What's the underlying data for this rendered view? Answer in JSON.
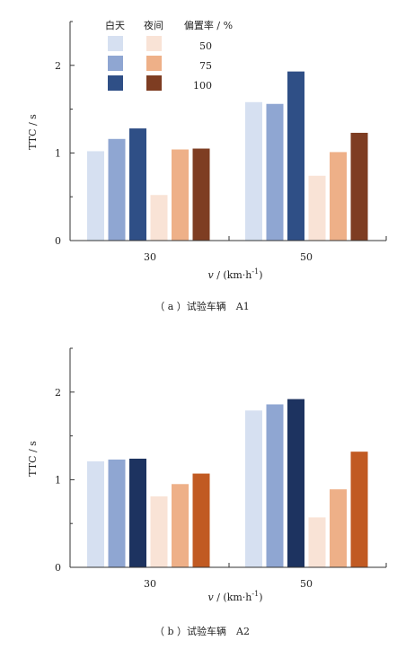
{
  "legend": {
    "day_header": "白天",
    "night_header": "夜间",
    "rate_header": "偏置率 / %",
    "rates": [
      "50",
      "75",
      "100"
    ]
  },
  "chart_data": [
    {
      "type": "bar",
      "caption": "（ a ）试验车辆　A1",
      "xlabel": "v / (km·h⁻¹)",
      "ylabel": "TTC / s",
      "ylim": [
        0,
        2.5
      ],
      "yticks": [
        0,
        1,
        2
      ],
      "categories": [
        "30",
        "50"
      ],
      "legend_position": "top-left",
      "series": [
        {
          "group": "白天",
          "rate": "50",
          "color": "#d6e0f1",
          "values": [
            1.02,
            1.58
          ]
        },
        {
          "group": "白天",
          "rate": "75",
          "color": "#8fa6d2",
          "values": [
            1.16,
            1.56
          ]
        },
        {
          "group": "白天",
          "rate": "100",
          "color": "#2f4f86",
          "values": [
            1.28,
            1.93
          ]
        },
        {
          "group": "夜间",
          "rate": "50",
          "color": "#f9e3d6",
          "values": [
            0.52,
            0.74
          ]
        },
        {
          "group": "夜间",
          "rate": "75",
          "color": "#eeb088",
          "values": [
            1.04,
            1.01
          ]
        },
        {
          "group": "夜间",
          "rate": "100",
          "color": "#7e3d22",
          "values": [
            1.05,
            1.23
          ]
        }
      ]
    },
    {
      "type": "bar",
      "caption": "（ b ）试验车辆　A2",
      "xlabel": "v / (km·h⁻¹)",
      "ylabel": "TTC / s",
      "ylim": [
        0,
        2.5
      ],
      "yticks": [
        0,
        1,
        2
      ],
      "categories": [
        "30",
        "50"
      ],
      "series": [
        {
          "group": "白天",
          "rate": "50",
          "color": "#d6e0f1",
          "values": [
            1.21,
            1.79
          ]
        },
        {
          "group": "白天",
          "rate": "75",
          "color": "#8fa6d2",
          "values": [
            1.23,
            1.86
          ]
        },
        {
          "group": "白天",
          "rate": "100",
          "color": "#1d3360",
          "values": [
            1.24,
            1.92
          ]
        },
        {
          "group": "夜间",
          "rate": "50",
          "color": "#f9e3d6",
          "values": [
            0.81,
            0.57
          ]
        },
        {
          "group": "夜间",
          "rate": "75",
          "color": "#eeb088",
          "values": [
            0.95,
            0.89
          ]
        },
        {
          "group": "夜间",
          "rate": "100",
          "color": "#c15a22",
          "values": [
            1.07,
            1.32
          ]
        }
      ]
    }
  ]
}
